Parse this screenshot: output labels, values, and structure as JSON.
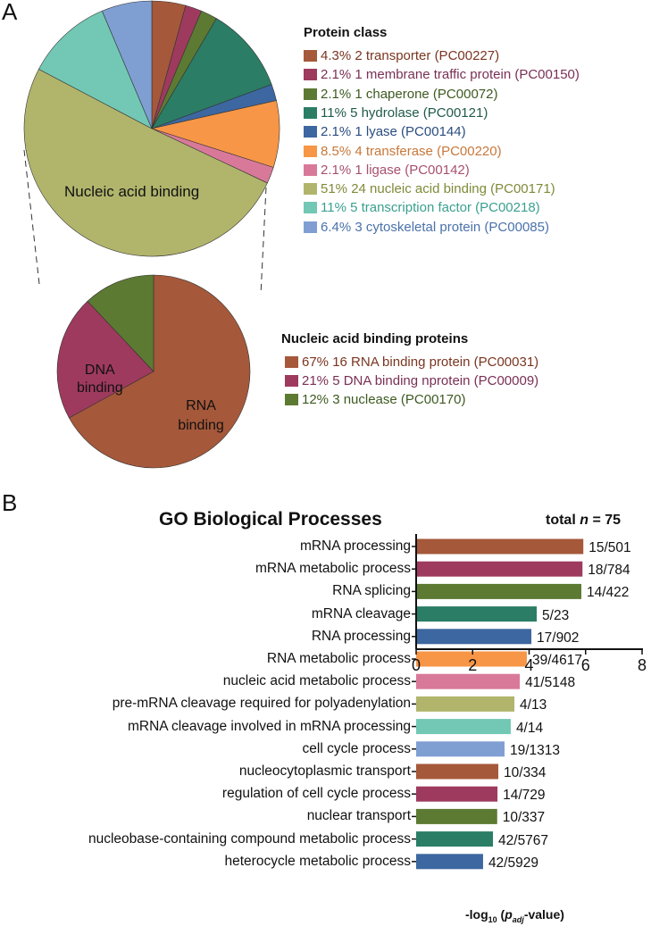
{
  "panels": {
    "a": "A",
    "b": "B"
  },
  "chart_data": [
    {
      "type": "pie",
      "title": "Protein class",
      "slice_label": "Nucleic acid binding",
      "legend_placement": "right",
      "slices": [
        {
          "label": "4.3%  2 transporter (PC00227)",
          "percent": 4.3,
          "count": 2,
          "color": "#a5583a",
          "text_color": "#7a3520"
        },
        {
          "label": "2.1%  1 membrane traffic protein (PC00150)",
          "percent": 2.1,
          "count": 1,
          "color": "#9e3a5e",
          "text_color": "#7a2f55"
        },
        {
          "label": "2.1%  1 chaperone (PC00072)",
          "percent": 2.1,
          "count": 1,
          "color": "#5d7a33",
          "text_color": "#3d5a20"
        },
        {
          "label": "11%  5 hydrolase (PC00121)",
          "percent": 11,
          "count": 5,
          "color": "#2b7d66",
          "text_color": "#1f5a4a"
        },
        {
          "label": "2.1%  1 lyase (PC00144)",
          "percent": 2.1,
          "count": 1,
          "color": "#3d67a0",
          "text_color": "#2a4d80"
        },
        {
          "label": "8.5%  4 transferase (PC00220)",
          "percent": 8.5,
          "count": 4,
          "color": "#f79646",
          "text_color": "#c8783a"
        },
        {
          "label": "2.1%  1 ligase (PC00142)",
          "percent": 2.1,
          "count": 1,
          "color": "#d9799a",
          "text_color": "#a8506e"
        },
        {
          "label": "51%  24 nucleic acid binding (PC00171)",
          "percent": 51,
          "count": 24,
          "color": "#b1b56c",
          "text_color": "#7f8a38"
        },
        {
          "label": "11%  5 transcription factor (PC00218)",
          "percent": 11,
          "count": 5,
          "color": "#72c8b4",
          "text_color": "#3aa090"
        },
        {
          "label": "6.4%  3 cytoskeletal protein (PC00085)",
          "percent": 6.4,
          "count": 3,
          "color": "#7f9fd3",
          "text_color": "#4a72aa"
        }
      ]
    },
    {
      "type": "pie",
      "title": "Nucleic acid binding proteins",
      "legend_placement": "right",
      "slices": [
        {
          "label": "67% 16 RNA binding protein (PC00031)",
          "slice_label": "RNA binding",
          "percent": 67,
          "count": 16,
          "color": "#a5583a",
          "text_color": "#7a3520"
        },
        {
          "label": "21%  5 DNA binding nprotein (PC00009)",
          "slice_label": "DNA binding",
          "percent": 21,
          "count": 5,
          "color": "#9e3a5e",
          "text_color": "#7a2f55"
        },
        {
          "label": "12%  3 nuclease (PC00170)",
          "slice_label": "",
          "percent": 12,
          "count": 3,
          "color": "#5d7a33",
          "text_color": "#3d5a20"
        }
      ]
    },
    {
      "type": "bar",
      "orientation": "horizontal",
      "title": "GO Biological Processes",
      "annotation": "total n = 75",
      "xlabel": "-log10 (padj-value)",
      "xlim": [
        0,
        8
      ],
      "xticks": [
        "0",
        "2",
        "4",
        "6",
        "8"
      ],
      "grid": false,
      "categories": [
        "mRNA processing",
        "mRNA metabolic process",
        "RNA splicing",
        "mRNA cleavage",
        "RNA processing",
        "RNA metabolic process",
        "nucleic acid metabolic process",
        "pre-mRNA cleavage required for polyadenylation",
        "mRNA cleavage involved in mRNA processing",
        "cell cycle process",
        "nucleocytoplasmic transport",
        "regulation of cell cycle process",
        "nuclear transport",
        "nucleobase-containing compound metabolic process",
        "heterocycle metabolic process"
      ],
      "values": [
        5.92,
        5.89,
        5.85,
        4.27,
        4.08,
        3.92,
        3.67,
        3.48,
        3.35,
        3.13,
        2.91,
        2.88,
        2.87,
        2.72,
        2.37
      ],
      "data_labels": [
        "15/501",
        "18/784",
        "14/422",
        "5/23",
        "17/902",
        "39/4617",
        "41/5148",
        "4/13",
        "4/14",
        "19/1313",
        "10/334",
        "14/729",
        "10/337",
        "42/5767",
        "42/5929"
      ],
      "colors": [
        "#a5583a",
        "#9e3a5e",
        "#5d7a33",
        "#2b7d66",
        "#3d67a0",
        "#f79646",
        "#d9799a",
        "#b1b56c",
        "#72c8b4",
        "#7f9fd3",
        "#a5583a",
        "#9e3a5e",
        "#5d7a33",
        "#2b7d66",
        "#3d67a0"
      ]
    }
  ]
}
